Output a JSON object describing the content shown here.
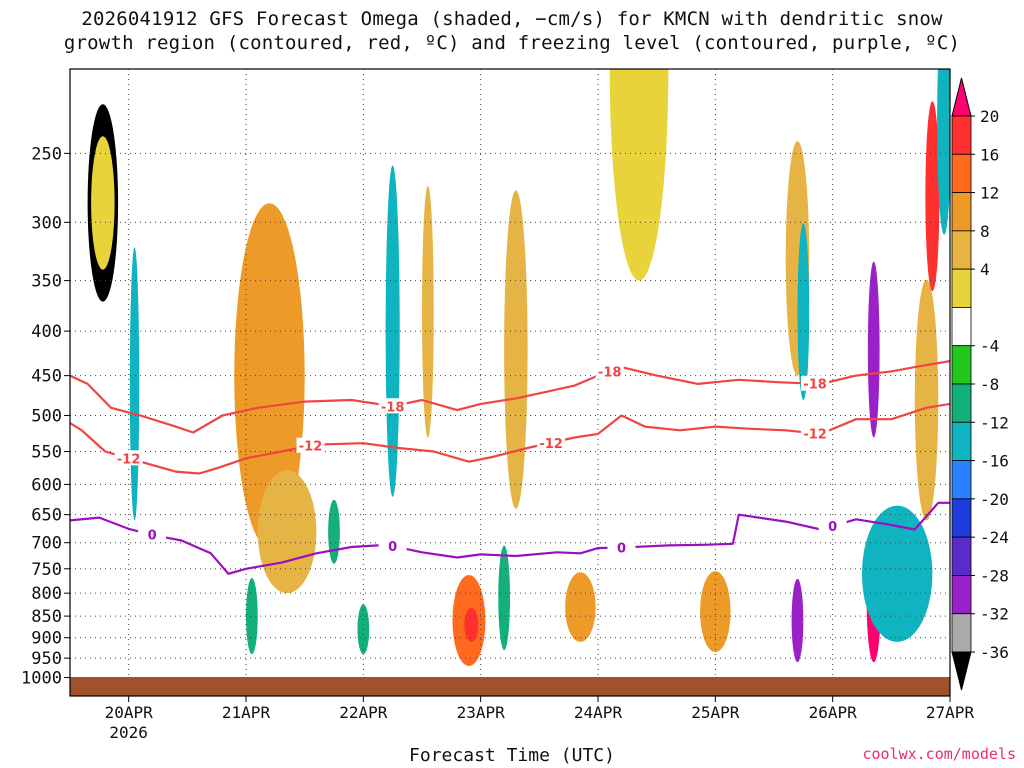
{
  "title": {
    "line1": "2026041912 GFS Forecast Omega (shaded, −cm/s) for KMCN with dendritic snow",
    "line2": "growth region (contoured, red, ºC) and freezing level (contoured, purple, ºC)"
  },
  "xlabel": "Forecast Time (UTC)",
  "credit": "coolwx.com/models",
  "chart_data": {
    "type": "heatmap",
    "title": "GFS Forecast Omega (shaded, −cm/s) for KMCN",
    "run": "2026041912",
    "xlabel": "Forecast Time (UTC)",
    "ylabel": "",
    "x_range_days": [
      19.5,
      27.0
    ],
    "y_range_hpa": [
      1050,
      200
    ],
    "x_ticks": [
      {
        "day": 20,
        "label": "20APR"
      },
      {
        "day": 21,
        "label": "21APR"
      },
      {
        "day": 22,
        "label": "22APR"
      },
      {
        "day": 23,
        "label": "23APR"
      },
      {
        "day": 24,
        "label": "24APR"
      },
      {
        "day": 25,
        "label": "25APR"
      },
      {
        "day": 26,
        "label": "26APR"
      },
      {
        "day": 27,
        "label": "27APR"
      }
    ],
    "x_year_label": "2026",
    "y_ticks": [
      250,
      300,
      350,
      400,
      450,
      500,
      550,
      600,
      650,
      700,
      750,
      800,
      850,
      900,
      950,
      1000
    ],
    "colorbar": {
      "labels": [
        "20",
        "16",
        "12",
        "8",
        "4",
        "-4",
        "-8",
        "-12",
        "-16",
        "-20",
        "-24",
        "-28",
        "-32",
        "-36"
      ],
      "colors": [
        "#ff0070",
        "#ff3030",
        "#ff6a1e",
        "#ee9a28",
        "#e6b444",
        "#e8d43a",
        "#ffffff",
        "#22c81e",
        "#14b07a",
        "#0fb4c0",
        "#2a80ff",
        "#1e3cdc",
        "#5a2acc",
        "#9a20c8",
        "#aaaaaa",
        "#000000"
      ]
    },
    "blobs": [
      {
        "x": 19.78,
        "p": 285,
        "dx": 0.13,
        "dp": 85,
        "v": -36
      },
      {
        "x": 19.78,
        "p": 285,
        "dx": 0.1,
        "dp": 55,
        "v": 4
      },
      {
        "x": 20.05,
        "p": 460,
        "dx": 0.04,
        "dp": 200,
        "v": -12
      },
      {
        "x": 21.2,
        "p": 450,
        "dx": 0.3,
        "dp": 260,
        "v": 8
      },
      {
        "x": 21.35,
        "p": 680,
        "dx": 0.25,
        "dp": 120,
        "v": 6
      },
      {
        "x": 21.75,
        "p": 680,
        "dx": 0.05,
        "dp": 60,
        "v": -8
      },
      {
        "x": 21.05,
        "p": 850,
        "dx": 0.05,
        "dp": 90,
        "v": -8
      },
      {
        "x": 22.0,
        "p": 880,
        "dx": 0.05,
        "dp": 60,
        "v": -8
      },
      {
        "x": 22.25,
        "p": 400,
        "dx": 0.06,
        "dp": 220,
        "v": -12
      },
      {
        "x": 22.55,
        "p": 380,
        "dx": 0.05,
        "dp": 150,
        "v": 6
      },
      {
        "x": 22.9,
        "p": 860,
        "dx": 0.14,
        "dp": 110,
        "v": 12
      },
      {
        "x": 22.92,
        "p": 870,
        "dx": 0.06,
        "dp": 40,
        "v": 16
      },
      {
        "x": 23.2,
        "p": 810,
        "dx": 0.05,
        "dp": 120,
        "v": -8
      },
      {
        "x": 23.3,
        "p": 420,
        "dx": 0.1,
        "dp": 220,
        "v": 6
      },
      {
        "x": 23.85,
        "p": 830,
        "dx": 0.13,
        "dp": 80,
        "v": 8
      },
      {
        "x": 24.35,
        "p": 200,
        "dx": 0.25,
        "dp": 150,
        "v": 5
      },
      {
        "x": 25.0,
        "p": 840,
        "dx": 0.13,
        "dp": 95,
        "v": 8
      },
      {
        "x": 25.7,
        "p": 330,
        "dx": 0.1,
        "dp": 120,
        "v": 6
      },
      {
        "x": 25.7,
        "p": 860,
        "dx": 0.05,
        "dp": 100,
        "v": -28
      },
      {
        "x": 25.75,
        "p": 380,
        "dx": 0.05,
        "dp": 100,
        "v": -12
      },
      {
        "x": 26.35,
        "p": 420,
        "dx": 0.05,
        "dp": 110,
        "v": -28
      },
      {
        "x": 26.35,
        "p": 820,
        "dx": 0.06,
        "dp": 140,
        "v": 20
      },
      {
        "x": 26.55,
        "p": 760,
        "dx": 0.3,
        "dp": 150,
        "v": -12
      },
      {
        "x": 26.8,
        "p": 480,
        "dx": 0.1,
        "dp": 180,
        "v": 6
      },
      {
        "x": 26.85,
        "p": 280,
        "dx": 0.06,
        "dp": 80,
        "v": 16
      },
      {
        "x": 26.95,
        "p": 230,
        "dx": 0.06,
        "dp": 80,
        "v": -12
      }
    ],
    "series": [
      {
        "name": "-18",
        "label": "-18",
        "color": "#f04545",
        "x": [
          19.5,
          19.65,
          19.85,
          20.1,
          20.4,
          20.55,
          20.8,
          21.1,
          21.5,
          21.9,
          22.25,
          22.5,
          22.8,
          23.0,
          23.3,
          23.55,
          23.8,
          24.0,
          24.2,
          24.5,
          24.85,
          25.2,
          25.55,
          25.9,
          26.2,
          26.5,
          26.7,
          27.0
        ],
        "y": [
          450,
          460,
          490,
          500,
          515,
          523,
          500,
          490,
          482,
          480,
          488,
          480,
          493,
          485,
          478,
          470,
          462,
          450,
          440,
          450,
          460,
          455,
          458,
          460,
          450,
          445,
          440,
          433
        ],
        "labels_at": [
          22.25,
          24.1,
          25.85
        ]
      },
      {
        "name": "-12",
        "label": "-12",
        "color": "#f04545",
        "x": [
          19.5,
          19.6,
          19.8,
          20.1,
          20.4,
          20.6,
          20.75,
          21.0,
          21.3,
          21.6,
          22.0,
          22.3,
          22.6,
          22.9,
          23.1,
          23.4,
          23.8,
          24.0,
          24.2,
          24.4,
          24.7,
          25.0,
          25.3,
          25.6,
          25.9,
          26.2,
          26.5,
          26.8,
          27.0
        ],
        "y": [
          510,
          520,
          550,
          565,
          580,
          583,
          575,
          560,
          550,
          540,
          538,
          545,
          550,
          565,
          558,
          545,
          530,
          525,
          500,
          515,
          520,
          515,
          518,
          520,
          525,
          505,
          505,
          490,
          485
        ],
        "labels_at": [
          20.0,
          21.55,
          23.6,
          25.85
        ]
      },
      {
        "name": "0",
        "label": "0",
        "color": "#9a10c0",
        "x": [
          19.5,
          19.75,
          20.0,
          20.25,
          20.45,
          20.7,
          20.85,
          21.0,
          21.3,
          21.6,
          21.9,
          22.2,
          22.5,
          22.8,
          23.0,
          23.3,
          23.65,
          23.85,
          24.0,
          24.3,
          24.6,
          24.9,
          25.15,
          25.2,
          25.6,
          25.9,
          26.2,
          26.5,
          26.7,
          26.9,
          27.0
        ],
        "y": [
          660,
          655,
          675,
          688,
          696,
          720,
          760,
          750,
          738,
          720,
          708,
          704,
          718,
          728,
          722,
          725,
          718,
          720,
          710,
          708,
          705,
          704,
          702,
          650,
          662,
          676,
          658,
          668,
          676,
          630,
          630
        ],
        "labels_at": [
          20.2,
          22.25,
          24.2,
          26.0
        ]
      }
    ]
  }
}
